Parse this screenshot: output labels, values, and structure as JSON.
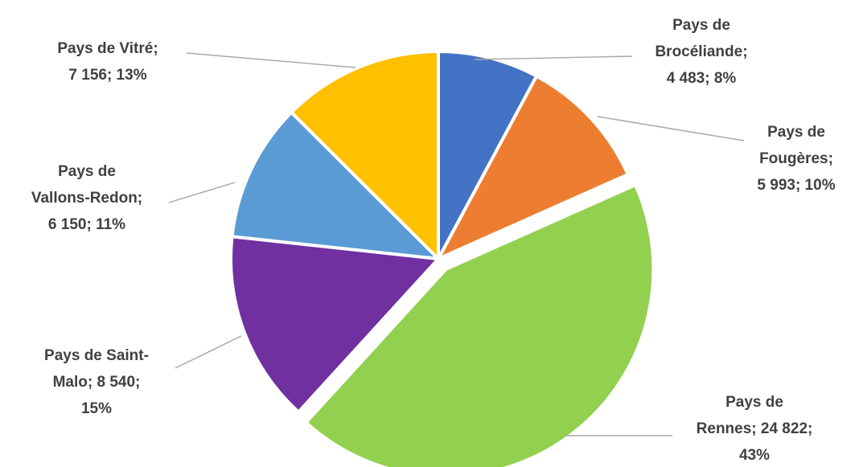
{
  "chart_data": {
    "type": "pie",
    "slices": [
      {
        "category": "Pays de Brocéliande",
        "value": 4483,
        "percent": 8,
        "color": "#4472C4",
        "label_lines": [
          "Pays de",
          "Brocéliande;",
          "4 483; 8%"
        ]
      },
      {
        "category": "Pays de Fougères",
        "value": 5993,
        "percent": 10,
        "color": "#ED7D31",
        "label_lines": [
          "Pays de",
          "Fougères;",
          "5 993; 10%"
        ]
      },
      {
        "category": "Pays de Rennes",
        "value": 24822,
        "percent": 43,
        "color": "#92D050",
        "label_lines": [
          "Pays de",
          "Rennes; 24 822;",
          "43%"
        ]
      },
      {
        "category": "Pays de Saint-Malo",
        "value": 8540,
        "percent": 15,
        "color": "#7030A0",
        "label_lines": [
          "Pays de Saint-",
          "Malo; 8 540;",
          "15%"
        ]
      },
      {
        "category": "Pays de Vallons-Redon",
        "value": 6150,
        "percent": 11,
        "color": "#5B9BD5",
        "label_lines": [
          "Pays de",
          "Vallons-Redon;",
          "6 150; 11%"
        ]
      },
      {
        "category": "Pays de Vitré",
        "value": 7156,
        "percent": 13,
        "color": "#FFC000",
        "label_lines": [
          "Pays de Vitré;",
          "7 156; 13%"
        ]
      }
    ],
    "exploded_category": "Pays de Rennes",
    "label_position": "outside with leader lines",
    "legend": "none"
  }
}
